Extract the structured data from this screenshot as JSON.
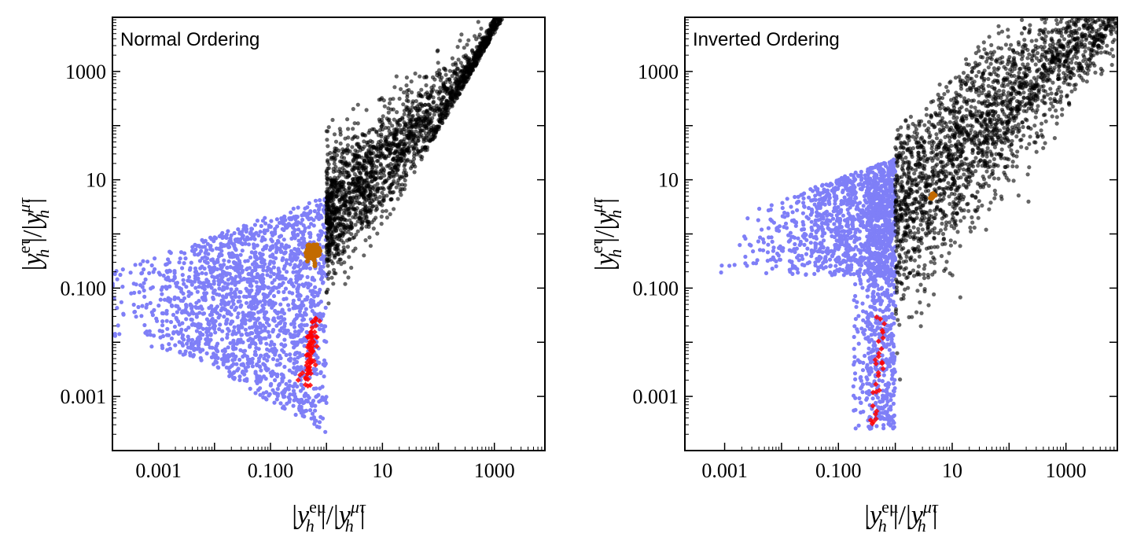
{
  "chart_data": [
    {
      "type": "scatter",
      "title": "Normal Ordering",
      "xlabel": "|y_h^{eμ}|/|y_h^{μτ}|",
      "ylabel": "|y_h^{eτ}|/|y_h^{μτ}|",
      "x_scale": "log",
      "y_scale": "log",
      "xlim": [
        0.00015,
        8000
      ],
      "ylim": [
        0.0001,
        10000
      ],
      "x_ticks": [
        0.001,
        0.1,
        10,
        1000
      ],
      "x_tick_labels": [
        "0.001",
        "0.100",
        "10",
        "1000"
      ],
      "y_ticks": [
        0.001,
        0.1,
        10,
        1000
      ],
      "y_tick_labels": [
        "0.001",
        "0.100",
        "10",
        "1000"
      ],
      "grid": false,
      "colors": {
        "blue": "#7f7ff7",
        "black": "#000000",
        "orange": "#c26a00",
        "red": "#ff0000"
      },
      "regions": {
        "blue": {
          "cut_x": 1.0,
          "xmin": 0.00015,
          "core": [
            0.06,
            0.05
          ],
          "spread": [
            1.0,
            0.9
          ]
        },
        "black": {
          "cut_x": 1.0,
          "xmax": 8000,
          "slope": 1.0,
          "offset": 0.3,
          "lower_at_cut": 0.02
        },
        "orange": {
          "center": [
            0.55,
            0.45
          ],
          "spread": [
            0.06,
            0.08
          ]
        },
        "red": {
          "x_range": [
            0.35,
            0.75
          ],
          "y_range": [
            0.0015,
            0.035
          ]
        }
      }
    },
    {
      "type": "scatter",
      "title": "Inverted Ordering",
      "xlabel": "|y_h^{eμ}|/|y_h^{μτ}|",
      "ylabel": "|y_h^{eτ}|/|y_h^{μτ}|",
      "x_scale": "log",
      "y_scale": "log",
      "xlim": [
        0.0002,
        8000
      ],
      "ylim": [
        0.0001,
        10000
      ],
      "x_ticks": [
        0.001,
        0.1,
        10,
        1000
      ],
      "x_tick_labels": [
        "0.001",
        "0.100",
        "10",
        "1000"
      ],
      "y_ticks": [
        0.001,
        0.1,
        10,
        1000
      ],
      "y_tick_labels": [
        "0.001",
        "0.100",
        "10",
        "1000"
      ],
      "grid": false,
      "colors": {
        "blue": "#7f7ff7",
        "black": "#000000",
        "orange": "#c26a00",
        "red": "#ff0000"
      },
      "regions": {
        "blue": {
          "cut_x": 1.0,
          "xmin": 0.0002,
          "core": [
            0.5,
            1.5
          ],
          "spread": [
            0.9,
            0.9
          ]
        },
        "black": {
          "cut_x": 1.0,
          "xmax": 8000,
          "slope": 1.0,
          "offset": 0.4,
          "lower_at_cut": 0.0008
        },
        "orange": {
          "center": [
            4.5,
            5.0
          ],
          "spread": [
            0.03,
            0.03
          ]
        },
        "red": {
          "x_range": [
            0.35,
            0.65
          ],
          "y_range": [
            0.0003,
            0.03
          ]
        }
      }
    }
  ]
}
